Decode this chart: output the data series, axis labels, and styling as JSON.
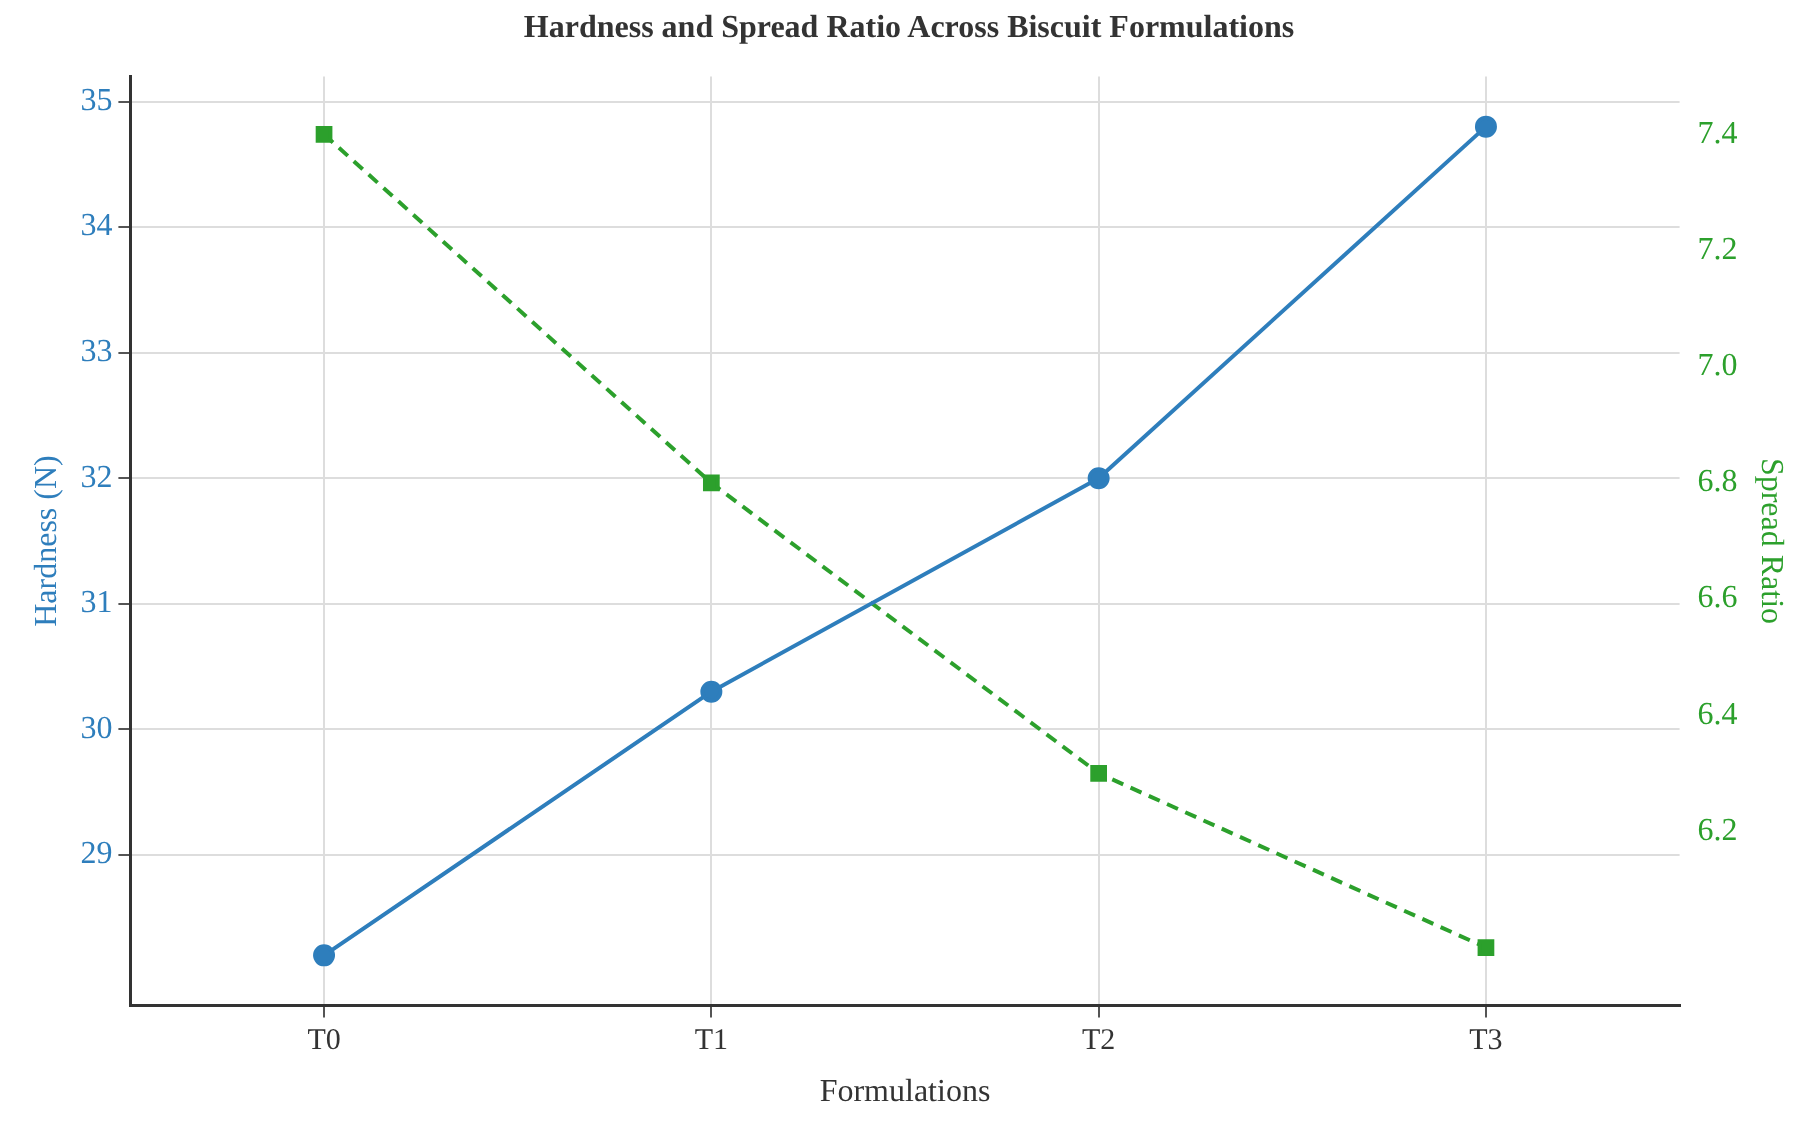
{
  "chart_data": {
    "type": "line",
    "title": "Hardness and Spread Ratio Across Biscuit Formulations",
    "xlabel": "Formulations",
    "ylabel": "Hardness (N)",
    "y2label": "Spread Ratio",
    "categories": [
      "T0",
      "T1",
      "T2",
      "T3"
    ],
    "series": [
      {
        "color": "#2e7ebc",
        "values": [
          28.2,
          30.3,
          32.0,
          34.8
        ],
        "marker": "circle",
        "line_style": "solid"
      },
      {
        "color": "#2ca02c",
        "values": [
          7.4,
          6.8,
          6.3,
          6.0
        ],
        "marker": "square",
        "line_style": "dashed",
        "axis": "y2"
      }
    ],
    "ylim": [
      27.8,
      35.2
    ],
    "yticks": [
      29,
      30,
      31,
      32,
      33,
      34,
      35
    ],
    "y2lim": [
      5.9,
      7.5
    ],
    "y2ticks": [
      6.2,
      6.4,
      6.6,
      6.8,
      {
        "value": 7.0,
        "label": "7.0"
      },
      7.2,
      7.4
    ],
    "grid": true,
    "legend": false
  }
}
